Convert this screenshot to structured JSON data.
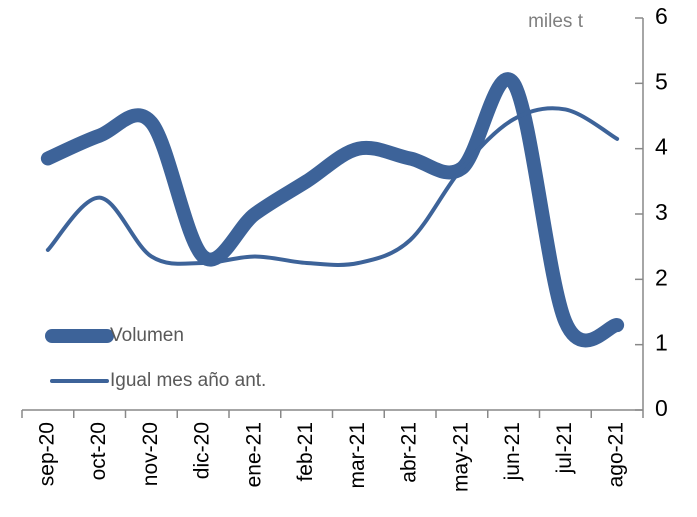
{
  "chart_data": {
    "type": "line",
    "y_axis_label": "miles t",
    "categories": [
      "sep-20",
      "oct-20",
      "nov-20",
      "dic-20",
      "ene-21",
      "feb-21",
      "mar-21",
      "abr-21",
      "may-21",
      "jun-21",
      "jul-21",
      "ago-21"
    ],
    "series": [
      {
        "name": "Volumen",
        "color": "#3d6399",
        "width": "thick",
        "values": [
          3.85,
          4.2,
          4.4,
          2.35,
          3.0,
          3.5,
          4.0,
          3.85,
          3.7,
          5.0,
          1.35,
          1.3
        ]
      },
      {
        "name": "Igual mes año ant.",
        "color": "#3d6399",
        "width": "thin",
        "values": [
          2.45,
          3.25,
          2.35,
          2.25,
          2.35,
          2.25,
          2.25,
          2.6,
          3.7,
          4.45,
          4.6,
          4.15
        ]
      }
    ],
    "ylim": [
      0,
      6
    ],
    "yticks": [
      0,
      1,
      2,
      3,
      4,
      5,
      6
    ],
    "y_axis_side": "right",
    "grid": false,
    "legend": "lower left",
    "smooth": true
  }
}
